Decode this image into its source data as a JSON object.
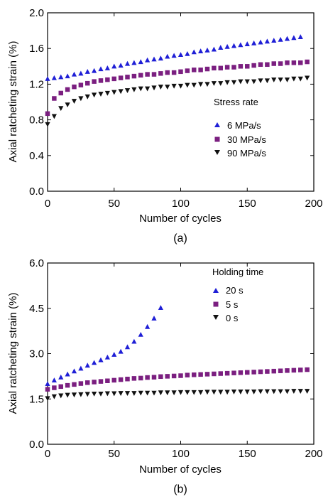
{
  "chart_data": [
    {
      "type": "scatter",
      "panel_label": "(a)",
      "xlabel": "Number of cycles",
      "ylabel": "Axial ratcheting strain (%)",
      "xlim": [
        0,
        200
      ],
      "ylim": [
        0.0,
        2.0
      ],
      "xticks": [
        "0",
        "50",
        "100",
        "150",
        "200"
      ],
      "yticks": [
        "0.0",
        "0.4",
        "0.8",
        "1.2",
        "1.6",
        "2.0"
      ],
      "grid": false,
      "legend": {
        "title": "Stress rate",
        "placement": "center-right"
      },
      "series": [
        {
          "name": "6 MPa/s",
          "marker": "triangle-up",
          "color": "#1f1fd6",
          "x": [
            0,
            5,
            10,
            15,
            20,
            25,
            30,
            35,
            40,
            45,
            50,
            55,
            60,
            65,
            70,
            75,
            80,
            85,
            90,
            95,
            100,
            105,
            110,
            115,
            120,
            125,
            130,
            135,
            140,
            145,
            150,
            155,
            160,
            165,
            170,
            175,
            180,
            185,
            190
          ],
          "y": [
            1.26,
            1.27,
            1.28,
            1.29,
            1.31,
            1.32,
            1.34,
            1.35,
            1.37,
            1.38,
            1.4,
            1.41,
            1.43,
            1.44,
            1.45,
            1.47,
            1.48,
            1.49,
            1.51,
            1.52,
            1.53,
            1.54,
            1.56,
            1.57,
            1.58,
            1.59,
            1.61,
            1.62,
            1.63,
            1.64,
            1.65,
            1.66,
            1.67,
            1.68,
            1.69,
            1.7,
            1.71,
            1.72,
            1.73
          ]
        },
        {
          "name": "30 MPa/s",
          "marker": "square",
          "color": "#7b1f80",
          "x": [
            0,
            5,
            10,
            15,
            20,
            25,
            30,
            35,
            40,
            45,
            50,
            55,
            60,
            65,
            70,
            75,
            80,
            85,
            90,
            95,
            100,
            105,
            110,
            115,
            120,
            125,
            130,
            135,
            140,
            145,
            150,
            155,
            160,
            165,
            170,
            175,
            180,
            185,
            190,
            195
          ],
          "y": [
            0.87,
            1.04,
            1.1,
            1.14,
            1.17,
            1.19,
            1.21,
            1.23,
            1.24,
            1.25,
            1.26,
            1.27,
            1.28,
            1.29,
            1.3,
            1.31,
            1.31,
            1.32,
            1.33,
            1.33,
            1.34,
            1.35,
            1.36,
            1.36,
            1.37,
            1.38,
            1.38,
            1.39,
            1.39,
            1.4,
            1.4,
            1.41,
            1.42,
            1.42,
            1.43,
            1.43,
            1.44,
            1.44,
            1.44,
            1.45
          ]
        },
        {
          "name": "90 MPa/s",
          "marker": "triangle-down",
          "color": "#111111",
          "x": [
            0,
            5,
            10,
            15,
            20,
            25,
            30,
            35,
            40,
            45,
            50,
            55,
            60,
            65,
            70,
            75,
            80,
            85,
            90,
            95,
            100,
            105,
            110,
            115,
            120,
            125,
            130,
            135,
            140,
            145,
            150,
            155,
            160,
            165,
            170,
            175,
            180,
            185,
            190,
            195
          ],
          "y": [
            0.75,
            0.84,
            0.93,
            0.97,
            1.01,
            1.04,
            1.06,
            1.08,
            1.09,
            1.1,
            1.11,
            1.12,
            1.13,
            1.14,
            1.15,
            1.15,
            1.16,
            1.17,
            1.17,
            1.18,
            1.18,
            1.19,
            1.19,
            1.2,
            1.2,
            1.21,
            1.21,
            1.22,
            1.22,
            1.23,
            1.23,
            1.23,
            1.24,
            1.24,
            1.25,
            1.25,
            1.25,
            1.26,
            1.26,
            1.27
          ]
        }
      ]
    },
    {
      "type": "scatter",
      "panel_label": "(b)",
      "xlabel": "Number of cycles",
      "ylabel": "Axial ratcheting strain (%)",
      "xlim": [
        0,
        200
      ],
      "ylim": [
        0.0,
        6.0
      ],
      "xticks": [
        "0",
        "50",
        "100",
        "150",
        "200"
      ],
      "yticks": [
        "0.0",
        "1.5",
        "3.0",
        "4.5",
        "6.0"
      ],
      "grid": false,
      "legend": {
        "title": "Holding time",
        "placement": "top-right"
      },
      "series": [
        {
          "name": "20 s",
          "marker": "triangle-up",
          "color": "#1f1fd6",
          "x": [
            0,
            5,
            10,
            15,
            20,
            25,
            30,
            35,
            40,
            45,
            50,
            55,
            60,
            65,
            70,
            75,
            80,
            85
          ],
          "y": [
            2.0,
            2.12,
            2.22,
            2.32,
            2.42,
            2.51,
            2.61,
            2.7,
            2.79,
            2.88,
            2.97,
            3.07,
            3.22,
            3.4,
            3.63,
            3.89,
            4.17,
            4.52
          ]
        },
        {
          "name": "5 s",
          "marker": "square",
          "color": "#7b1f80",
          "x": [
            0,
            5,
            10,
            15,
            20,
            25,
            30,
            35,
            40,
            45,
            50,
            55,
            60,
            65,
            70,
            75,
            80,
            85,
            90,
            95,
            100,
            105,
            110,
            115,
            120,
            125,
            130,
            135,
            140,
            145,
            150,
            155,
            160,
            165,
            170,
            175,
            180,
            185,
            190,
            195
          ],
          "y": [
            1.82,
            1.87,
            1.91,
            1.95,
            1.98,
            2.01,
            2.04,
            2.06,
            2.08,
            2.1,
            2.12,
            2.14,
            2.16,
            2.18,
            2.19,
            2.21,
            2.22,
            2.24,
            2.25,
            2.26,
            2.27,
            2.29,
            2.3,
            2.31,
            2.32,
            2.33,
            2.34,
            2.35,
            2.36,
            2.37,
            2.38,
            2.39,
            2.4,
            2.41,
            2.42,
            2.43,
            2.44,
            2.45,
            2.46,
            2.47
          ]
        },
        {
          "name": "0 s",
          "marker": "triangle-down",
          "color": "#111111",
          "x": [
            0,
            5,
            10,
            15,
            20,
            25,
            30,
            35,
            40,
            45,
            50,
            55,
            60,
            65,
            70,
            75,
            80,
            85,
            90,
            95,
            100,
            105,
            110,
            115,
            120,
            125,
            130,
            135,
            140,
            145,
            150,
            155,
            160,
            165,
            170,
            175,
            180,
            185,
            190,
            195
          ],
          "y": [
            1.52,
            1.58,
            1.61,
            1.63,
            1.64,
            1.65,
            1.66,
            1.67,
            1.67,
            1.68,
            1.68,
            1.69,
            1.69,
            1.69,
            1.7,
            1.7,
            1.7,
            1.71,
            1.71,
            1.71,
            1.72,
            1.72,
            1.72,
            1.72,
            1.73,
            1.73,
            1.73,
            1.73,
            1.74,
            1.74,
            1.74,
            1.74,
            1.75,
            1.75,
            1.75,
            1.75,
            1.75,
            1.76,
            1.76,
            1.76
          ]
        }
      ]
    }
  ]
}
